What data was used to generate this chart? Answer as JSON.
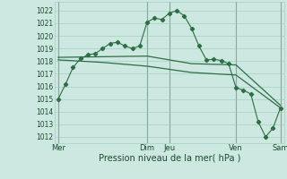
{
  "xlabel": "Pression niveau de la mer( hPa )",
  "background_color": "#cce8e0",
  "grid_color": "#99ccbb",
  "line_color": "#2d6e45",
  "vline_color": "#668877",
  "ylim": [
    1011.5,
    1022.7
  ],
  "yticks": [
    1012,
    1013,
    1014,
    1015,
    1016,
    1017,
    1018,
    1019,
    1020,
    1021,
    1022
  ],
  "x_day_labels": [
    "Mer",
    "",
    "Dim",
    "Jeu",
    "",
    "Ven",
    "",
    "Sam"
  ],
  "x_day_show": [
    0,
    12,
    15,
    24,
    30
  ],
  "x_day_show_labels": [
    "Mer",
    "Dim",
    "Jeu",
    "Ven",
    "Sam"
  ],
  "vline_positions": [
    0,
    12,
    15,
    24,
    30
  ],
  "series1_x": [
    0,
    1,
    2,
    3,
    4,
    5,
    6,
    7,
    8,
    9,
    10,
    11,
    12,
    13,
    14,
    15,
    16,
    17,
    18,
    19,
    20,
    21,
    22,
    23,
    24,
    25,
    26,
    27,
    28,
    29,
    30
  ],
  "series1_y": [
    1015.0,
    1016.2,
    1017.5,
    1018.2,
    1018.5,
    1018.6,
    1019.0,
    1019.4,
    1019.5,
    1019.2,
    1019.0,
    1019.2,
    1021.1,
    1021.4,
    1021.3,
    1021.8,
    1022.0,
    1021.6,
    1020.6,
    1019.2,
    1018.1,
    1018.15,
    1018.05,
    1017.8,
    1015.9,
    1015.7,
    1015.4,
    1013.2,
    1012.0,
    1012.7,
    1014.3
  ],
  "series2_x": [
    0,
    6,
    12,
    18,
    24,
    30
  ],
  "series2_y": [
    1018.3,
    1018.35,
    1018.4,
    1017.8,
    1017.7,
    1014.5
  ],
  "series3_x": [
    0,
    6,
    12,
    18,
    24,
    30
  ],
  "series3_y": [
    1018.1,
    1017.9,
    1017.6,
    1017.1,
    1016.9,
    1014.3
  ],
  "ytick_fontsize": 5.5,
  "xtick_fontsize": 6.0,
  "xlabel_fontsize": 7.0
}
